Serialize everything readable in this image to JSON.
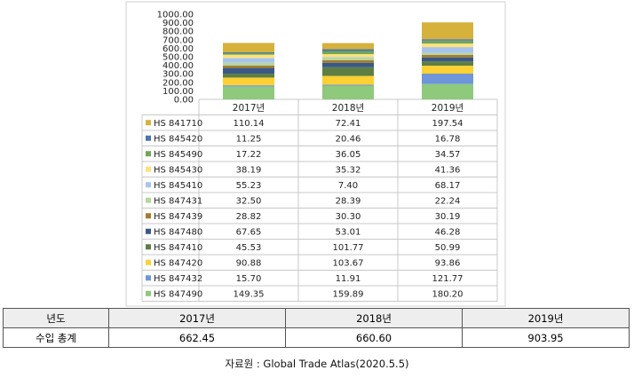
{
  "chart_data": {
    "type": "bar",
    "stacked": true,
    "categories": [
      "2017년",
      "2018년",
      "2019년"
    ],
    "ylim": [
      0,
      1000
    ],
    "yticks": [
      "0.00",
      "100.00",
      "200.00",
      "300.00",
      "400.00",
      "500.00",
      "600.00",
      "700.00",
      "800.00",
      "900.00",
      "1000.00"
    ],
    "series": [
      {
        "name": "HS 847490",
        "color": "#8ec97c",
        "values": [
          149.35,
          159.89,
          180.2
        ],
        "labels": [
          "149.35",
          "159.89",
          "180.20"
        ]
      },
      {
        "name": "HS 847432",
        "color": "#6e96d8",
        "values": [
          15.7,
          11.91,
          121.77
        ],
        "labels": [
          "15.70",
          "11.91",
          "121.77"
        ]
      },
      {
        "name": "HS 847420",
        "color": "#fdd033",
        "values": [
          90.88,
          103.67,
          93.86
        ],
        "labels": [
          "90.88",
          "103.67",
          "93.86"
        ]
      },
      {
        "name": "HS 847410",
        "color": "#5d7e45",
        "values": [
          45.53,
          101.77,
          50.99
        ],
        "labels": [
          "45.53",
          "101.77",
          "50.99"
        ]
      },
      {
        "name": "HS 847480",
        "color": "#3a5887",
        "values": [
          67.65,
          53.01,
          46.28
        ],
        "labels": [
          "67.65",
          "53.01",
          "46.28"
        ]
      },
      {
        "name": "HS 847439",
        "color": "#a37d2c",
        "values": [
          28.82,
          30.3,
          30.19
        ],
        "labels": [
          "28.82",
          "30.30",
          "30.19"
        ]
      },
      {
        "name": "HS 847431",
        "color": "#b6d79d",
        "values": [
          32.5,
          28.39,
          22.24
        ],
        "labels": [
          "32.50",
          "28.39",
          "22.24"
        ]
      },
      {
        "name": "HS 845410",
        "color": "#a8c4ee",
        "values": [
          55.23,
          7.4,
          68.17
        ],
        "labels": [
          "55.23",
          "7.40",
          "68.17"
        ]
      },
      {
        "name": "HS 845430",
        "color": "#fde27a",
        "values": [
          38.19,
          35.32,
          41.36
        ],
        "labels": [
          "38.19",
          "35.32",
          "41.36"
        ]
      },
      {
        "name": "HS 845490",
        "color": "#72a657",
        "values": [
          17.22,
          36.05,
          34.57
        ],
        "labels": [
          "17.22",
          "36.05",
          "34.57"
        ]
      },
      {
        "name": "HS 845420",
        "color": "#4b74b2",
        "values": [
          11.25,
          20.46,
          16.78
        ],
        "labels": [
          "11.25",
          "20.46",
          "16.78"
        ]
      },
      {
        "name": "HS 841710",
        "color": "#d6b13b",
        "values": [
          110.14,
          72.41,
          197.54
        ],
        "labels": [
          "110.14",
          "72.41",
          "197.54"
        ]
      }
    ]
  },
  "summary_table": {
    "header": {
      "label": "년도",
      "cols": [
        "2017년",
        "2018년",
        "2019년"
      ]
    },
    "row": {
      "label": "수입 총계",
      "cols": [
        "662.45",
        "660.60",
        "903.95"
      ]
    }
  },
  "source": "자료원 : Global Trade Atlas(2020.5.5)"
}
